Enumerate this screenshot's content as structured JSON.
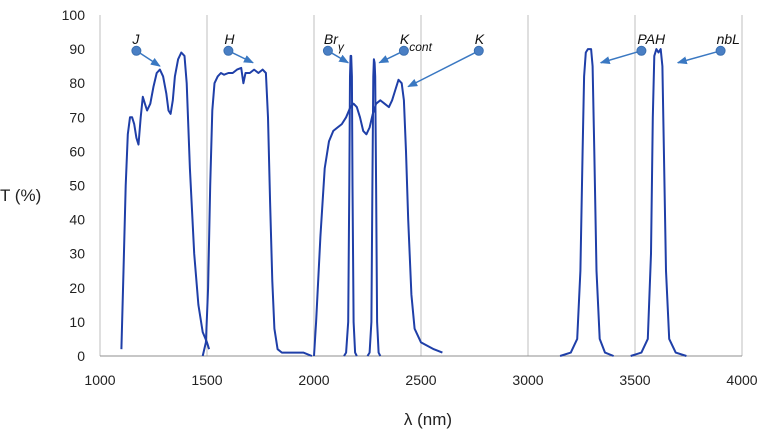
{
  "chart_data": {
    "type": "line",
    "xlabel": "λ (nm)",
    "ylabel": "T (%)",
    "xlim": [
      1000,
      4000
    ],
    "ylim": [
      0,
      100
    ],
    "xticks": [
      "1000",
      "1500",
      "2000",
      "2500",
      "3000",
      "3500",
      "4000"
    ],
    "yticks": [
      "0",
      "10",
      "20",
      "30",
      "40",
      "50",
      "60",
      "70",
      "80",
      "90",
      "100"
    ],
    "grid": "vertical",
    "colors": {
      "curve": "#1f3fa8",
      "marker": "#4a7fc4",
      "grid": "#bfbfbf"
    },
    "series": [
      {
        "points": [
          [
            1100,
            2
          ],
          [
            1110,
            25
          ],
          [
            1120,
            50
          ],
          [
            1130,
            65
          ],
          [
            1140,
            70
          ],
          [
            1150,
            70
          ],
          [
            1160,
            68
          ],
          [
            1170,
            64
          ],
          [
            1180,
            62
          ],
          [
            1190,
            70
          ],
          [
            1200,
            76
          ],
          [
            1210,
            74
          ],
          [
            1220,
            72
          ],
          [
            1235,
            74
          ],
          [
            1250,
            79
          ],
          [
            1265,
            83
          ],
          [
            1280,
            84
          ],
          [
            1295,
            82
          ],
          [
            1310,
            77
          ],
          [
            1320,
            72
          ],
          [
            1330,
            71
          ],
          [
            1340,
            75
          ],
          [
            1350,
            82
          ],
          [
            1365,
            87
          ],
          [
            1380,
            89
          ],
          [
            1395,
            88
          ],
          [
            1405,
            80
          ],
          [
            1420,
            55
          ],
          [
            1440,
            30
          ],
          [
            1460,
            15
          ],
          [
            1480,
            7
          ],
          [
            1500,
            4
          ],
          [
            1510,
            2
          ]
        ]
      },
      {
        "points": [
          [
            1480,
            0
          ],
          [
            1495,
            4
          ],
          [
            1505,
            20
          ],
          [
            1515,
            50
          ],
          [
            1525,
            72
          ],
          [
            1535,
            80
          ],
          [
            1550,
            82
          ],
          [
            1565,
            83
          ],
          [
            1580,
            82.5
          ],
          [
            1600,
            83
          ],
          [
            1620,
            83
          ],
          [
            1640,
            84
          ],
          [
            1660,
            84.5
          ],
          [
            1670,
            80
          ],
          [
            1680,
            83
          ],
          [
            1700,
            83
          ],
          [
            1720,
            84
          ],
          [
            1740,
            83
          ],
          [
            1760,
            84
          ],
          [
            1775,
            83
          ],
          [
            1785,
            70
          ],
          [
            1795,
            45
          ],
          [
            1805,
            22
          ],
          [
            1815,
            8
          ],
          [
            1830,
            2
          ],
          [
            1850,
            1
          ],
          [
            1900,
            1
          ],
          [
            1950,
            1
          ],
          [
            1990,
            0
          ]
        ]
      },
      {
        "points": [
          [
            2000,
            0
          ],
          [
            2010,
            10
          ],
          [
            2030,
            35
          ],
          [
            2050,
            55
          ],
          [
            2070,
            63
          ],
          [
            2090,
            66
          ],
          [
            2110,
            67
          ],
          [
            2130,
            68
          ],
          [
            2150,
            70
          ],
          [
            2170,
            73
          ],
          [
            2185,
            74
          ],
          [
            2200,
            73
          ],
          [
            2215,
            70
          ],
          [
            2230,
            66
          ],
          [
            2245,
            65
          ],
          [
            2260,
            67
          ],
          [
            2275,
            71
          ],
          [
            2290,
            74
          ],
          [
            2310,
            75
          ],
          [
            2330,
            74
          ],
          [
            2350,
            73
          ],
          [
            2365,
            75
          ],
          [
            2380,
            78
          ],
          [
            2395,
            81
          ],
          [
            2410,
            80
          ],
          [
            2420,
            75
          ],
          [
            2430,
            60
          ],
          [
            2440,
            40
          ],
          [
            2455,
            18
          ],
          [
            2470,
            8
          ],
          [
            2500,
            4
          ],
          [
            2560,
            2
          ],
          [
            2600,
            1
          ]
        ]
      },
      {
        "points": [
          [
            2140,
            0
          ],
          [
            2150,
            1
          ],
          [
            2160,
            10
          ],
          [
            2165,
            50
          ],
          [
            2168,
            82
          ],
          [
            2171,
            88
          ],
          [
            2174,
            88
          ],
          [
            2177,
            82
          ],
          [
            2180,
            50
          ],
          [
            2185,
            10
          ],
          [
            2192,
            1
          ],
          [
            2200,
            0
          ]
        ]
      },
      {
        "points": [
          [
            2250,
            0
          ],
          [
            2260,
            1
          ],
          [
            2268,
            10
          ],
          [
            2273,
            50
          ],
          [
            2277,
            82
          ],
          [
            2280,
            87
          ],
          [
            2283,
            86
          ],
          [
            2286,
            82
          ],
          [
            2290,
            50
          ],
          [
            2295,
            10
          ],
          [
            2302,
            1
          ],
          [
            2310,
            0
          ]
        ]
      },
      {
        "points": [
          [
            3150,
            0
          ],
          [
            3200,
            1
          ],
          [
            3230,
            5
          ],
          [
            3245,
            25
          ],
          [
            3255,
            60
          ],
          [
            3262,
            82
          ],
          [
            3270,
            89
          ],
          [
            3280,
            90
          ],
          [
            3295,
            90
          ],
          [
            3302,
            85
          ],
          [
            3310,
            60
          ],
          [
            3320,
            25
          ],
          [
            3335,
            5
          ],
          [
            3360,
            1
          ],
          [
            3400,
            0
          ]
        ]
      },
      {
        "points": [
          [
            3480,
            0
          ],
          [
            3530,
            1
          ],
          [
            3560,
            5
          ],
          [
            3575,
            30
          ],
          [
            3583,
            70
          ],
          [
            3590,
            88
          ],
          [
            3600,
            90
          ],
          [
            3610,
            89
          ],
          [
            3620,
            90
          ],
          [
            3628,
            85
          ],
          [
            3635,
            60
          ],
          [
            3645,
            25
          ],
          [
            3660,
            5
          ],
          [
            3690,
            1
          ],
          [
            3740,
            0
          ]
        ]
      }
    ],
    "annotations": [
      {
        "label": "J",
        "sub": "",
        "marker": [
          1170,
          89.5
        ],
        "target": [
          1280,
          85
        ]
      },
      {
        "label": "H",
        "sub": "",
        "marker": [
          1600,
          89.5
        ],
        "target": [
          1715,
          86
        ]
      },
      {
        "label": "Br",
        "sub": "γ",
        "marker": [
          2065,
          89.5
        ],
        "target": [
          2160,
          86
        ]
      },
      {
        "label": "K",
        "sub": "cont",
        "marker": [
          2420,
          89.5
        ],
        "target": [
          2305,
          86
        ]
      },
      {
        "label": "K",
        "sub": "",
        "marker": [
          2770,
          89.5
        ],
        "target": [
          2440,
          79
        ]
      },
      {
        "label": "PAH",
        "sub": "",
        "marker": [
          3530,
          89.5
        ],
        "target": [
          3340,
          86
        ]
      },
      {
        "label": "nbL",
        "sub": "",
        "marker": [
          3900,
          89.5
        ],
        "target": [
          3700,
          86
        ]
      }
    ]
  }
}
